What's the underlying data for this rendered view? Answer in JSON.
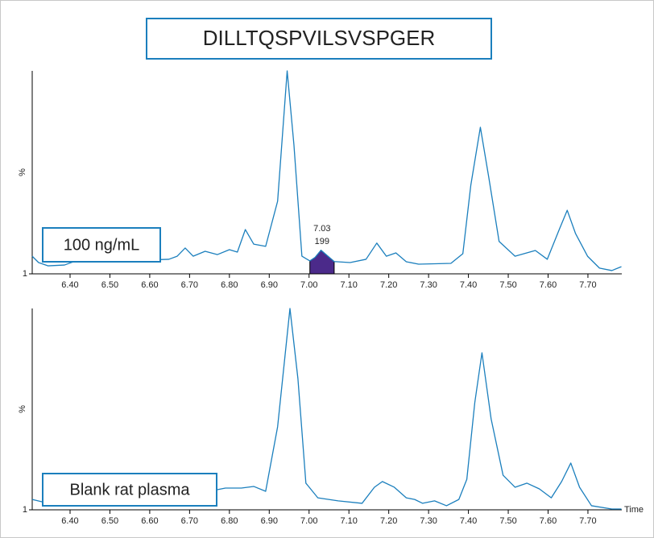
{
  "chart_data": [
    {
      "type": "line",
      "title": "DILLTQSPVILSVSPGER",
      "label": "100 ng/mL",
      "ylabel": "%",
      "xlim": [
        6.305,
        7.785
      ],
      "ylim": [
        1,
        100
      ],
      "xticks": [
        {
          "value": 6.4,
          "label": "6.40"
        },
        {
          "value": 6.5,
          "label": "6.50"
        },
        {
          "value": 6.6,
          "label": "6.60"
        },
        {
          "value": 6.7,
          "label": "6.70"
        },
        {
          "value": 6.8,
          "label": "6.80"
        },
        {
          "value": 6.9,
          "label": "6.90"
        },
        {
          "value": 7.0,
          "label": "7.00"
        },
        {
          "value": 7.1,
          "label": "7.10"
        },
        {
          "value": 7.2,
          "label": "7.20"
        },
        {
          "value": 7.3,
          "label": "7.30"
        },
        {
          "value": 7.4,
          "label": "7.40"
        },
        {
          "value": 7.5,
          "label": "7.50"
        },
        {
          "value": 7.6,
          "label": "7.60"
        },
        {
          "value": 7.7,
          "label": "7.70"
        }
      ],
      "yticks": [
        1
      ],
      "x": [
        6.305,
        6.321,
        6.345,
        6.386,
        6.426,
        6.467,
        6.527,
        6.588,
        6.648,
        6.669,
        6.689,
        6.709,
        6.739,
        6.77,
        6.8,
        6.82,
        6.84,
        6.861,
        6.891,
        6.921,
        6.945,
        6.962,
        6.982,
        7.002,
        7.015,
        7.03,
        7.045,
        7.063,
        7.103,
        7.143,
        7.17,
        7.194,
        7.218,
        7.244,
        7.275,
        7.356,
        7.386,
        7.406,
        7.43,
        7.451,
        7.477,
        7.517,
        7.568,
        7.598,
        7.628,
        7.648,
        7.669,
        7.699,
        7.729,
        7.76,
        7.784
      ],
      "series": [
        {
          "color": "#1b7fbd",
          "values": [
            9.6,
            6.5,
            4.9,
            5.3,
            8.1,
            7.3,
            8.1,
            7.7,
            8.1,
            9.6,
            13.6,
            9.6,
            12.0,
            10.4,
            12.8,
            11.6,
            22.6,
            15.5,
            14.4,
            36.4,
            100,
            63.9,
            9.6,
            7.3,
            9.0,
            12.5,
            10.0,
            7.0,
            6.5,
            8.1,
            16.0,
            9.6,
            11.2,
            6.9,
            5.7,
            6.1,
            10.8,
            44.2,
            72.5,
            48.2,
            16.8,
            9.6,
            12.4,
            8.1,
            22.6,
            32.0,
            20.6,
            9.6,
            3.8,
            2.6,
            4.5
          ]
        }
      ],
      "peak": {
        "x_start": 7.002,
        "x_end": 7.063,
        "color": "#4b2a8a",
        "time_label": "7.03",
        "area_label": "199"
      }
    },
    {
      "type": "line",
      "label": "Blank rat plasma",
      "ylabel": "%",
      "xlabel": "Time",
      "xlim": [
        6.305,
        7.785
      ],
      "ylim": [
        1,
        100
      ],
      "xticks": [
        {
          "value": 6.4,
          "label": "6.40"
        },
        {
          "value": 6.5,
          "label": "6.50"
        },
        {
          "value": 6.6,
          "label": "6.60"
        },
        {
          "value": 6.7,
          "label": "6.70"
        },
        {
          "value": 6.8,
          "label": "6.80"
        },
        {
          "value": 6.9,
          "label": "6.90"
        },
        {
          "value": 7.0,
          "label": "7.00"
        },
        {
          "value": 7.1,
          "label": "7.10"
        },
        {
          "value": 7.2,
          "label": "7.20"
        },
        {
          "value": 7.3,
          "label": "7.30"
        },
        {
          "value": 7.4,
          "label": "7.40"
        },
        {
          "value": 7.5,
          "label": "7.50"
        },
        {
          "value": 7.6,
          "label": "7.60"
        },
        {
          "value": 7.7,
          "label": "7.70"
        }
      ],
      "yticks": [
        1
      ],
      "x": [
        6.305,
        6.345,
        6.386,
        6.426,
        6.487,
        6.547,
        6.608,
        6.669,
        6.709,
        6.749,
        6.79,
        6.83,
        6.861,
        6.891,
        6.921,
        6.952,
        6.972,
        6.992,
        7.022,
        7.073,
        7.133,
        7.164,
        7.184,
        7.214,
        7.244,
        7.265,
        7.285,
        7.315,
        7.345,
        7.376,
        7.396,
        7.416,
        7.434,
        7.457,
        7.487,
        7.517,
        7.547,
        7.578,
        7.608,
        7.634,
        7.657,
        7.679,
        7.709,
        7.76,
        7.784
      ],
      "series": [
        {
          "color": "#1b7fbd",
          "values": [
            6.1,
            4.2,
            5.4,
            4.2,
            6.1,
            5.4,
            6.1,
            6.9,
            7.7,
            10.1,
            11.7,
            11.7,
            12.5,
            10.1,
            41.8,
            100,
            65.5,
            14.1,
            6.9,
            5.4,
            4.2,
            12.1,
            14.9,
            12.1,
            6.9,
            6.1,
            4.2,
            5.4,
            3.0,
            6.1,
            16.0,
            53.7,
            78.2,
            45.7,
            18.0,
            12.1,
            14.1,
            11.3,
            6.9,
            14.9,
            24.0,
            12.1,
            3.0,
            1.4,
            1.4
          ]
        }
      ]
    }
  ]
}
